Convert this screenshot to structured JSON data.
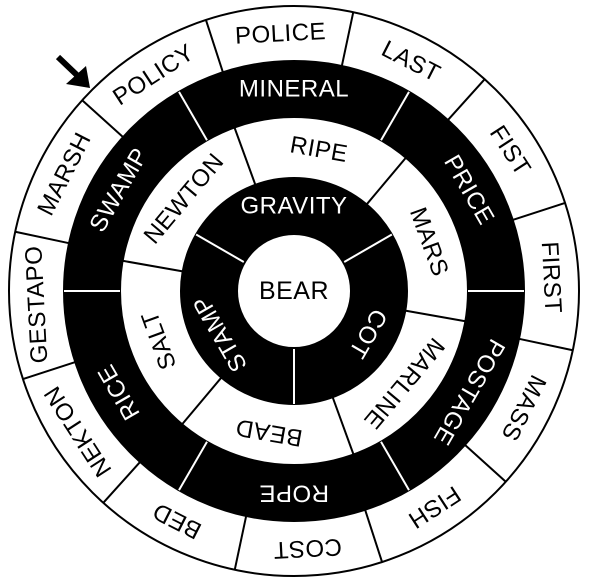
{
  "colors": {
    "ink": "#000000",
    "paper": "#ffffff"
  },
  "pointer": {
    "icon": "arrow-pointer-icon"
  },
  "center": {
    "label": "BEAR"
  },
  "rings": [
    {
      "name": "outer",
      "fill": "#ffffff",
      "text": "#000000",
      "segments": [
        {
          "label": "POLICE"
        },
        {
          "label": "LAST"
        },
        {
          "label": "FIST"
        },
        {
          "label": "FIRST"
        },
        {
          "label": "MASS"
        },
        {
          "label": "FISH"
        },
        {
          "label": "COST"
        },
        {
          "label": "BED"
        },
        {
          "label": "NEKTON"
        },
        {
          "label": "GESTAPO"
        },
        {
          "label": "MARSH"
        },
        {
          "label": "POLICY"
        }
      ]
    },
    {
      "name": "third",
      "fill": "#000000",
      "text": "#ffffff",
      "segments": [
        {
          "label": "PRICE"
        },
        {
          "label": "POSTAGE"
        },
        {
          "label": "ROPE"
        },
        {
          "label": "RICE"
        },
        {
          "label": "SWAMP"
        },
        {
          "label": "MINERAL"
        }
      ]
    },
    {
      "name": "second",
      "fill": "#ffffff",
      "text": "#000000",
      "segments": [
        {
          "label": "MARS"
        },
        {
          "label": "MARLINE"
        },
        {
          "label": "BEAD"
        },
        {
          "label": "SALT"
        },
        {
          "label": "NEWTON"
        },
        {
          "label": "RIPE"
        }
      ]
    },
    {
      "name": "inner",
      "fill": "#000000",
      "text": "#ffffff",
      "segments": [
        {
          "label": "COT"
        },
        {
          "label": "STAMP"
        },
        {
          "label": "GRAVITY"
        }
      ]
    }
  ]
}
